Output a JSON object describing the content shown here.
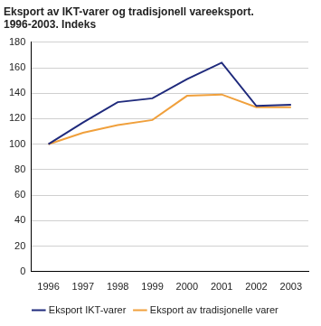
{
  "chart_data": {
    "type": "line",
    "title": [
      "Eksport av IKT-varer og tradisjonell vareeksport.",
      "1996-2003. Indeks"
    ],
    "categories": [
      "1996",
      "1997",
      "1998",
      "1999",
      "2000",
      "2001",
      "2002",
      "2003"
    ],
    "series": [
      {
        "name": "Eksport IKT-varer",
        "color": "#1f2a7c",
        "values": [
          100,
          117,
          133,
          136,
          151,
          164,
          130,
          131
        ]
      },
      {
        "name": "Eksport av tradisjonelle varer",
        "color": "#f0a03c",
        "values": [
          100,
          109,
          115,
          119,
          138,
          139,
          129,
          129
        ]
      }
    ],
    "ylim": [
      0,
      180
    ],
    "yticks": [
      0,
      20,
      40,
      60,
      80,
      100,
      120,
      140,
      160,
      180
    ],
    "grid": true,
    "legend": "bottom"
  }
}
